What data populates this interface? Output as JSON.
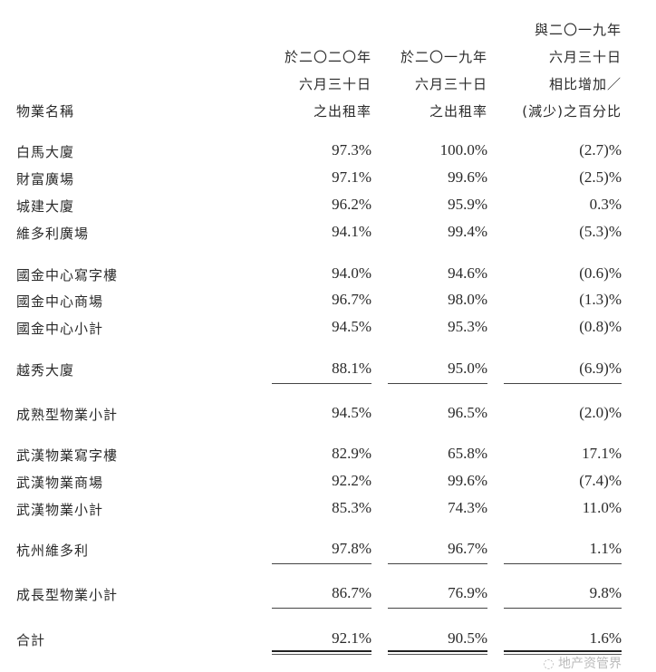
{
  "header": {
    "name_col": "物業名稱",
    "col1": [
      "於二〇二〇年",
      "六月三十日",
      "之出租率"
    ],
    "col2": [
      "於二〇一九年",
      "六月三十日",
      "之出租率"
    ],
    "col3": [
      "與二〇一九年",
      "六月三十日",
      "相比增加／",
      "(減少)之百分比"
    ]
  },
  "rows": [
    {
      "name": "白馬大廈",
      "rate_2020": "97.3%",
      "rate_2019": "100.0%",
      "change": "(2.7)%"
    },
    {
      "name": "財富廣場",
      "rate_2020": "97.1%",
      "rate_2019": "99.6%",
      "change": "(2.5)%"
    },
    {
      "name": "城建大廈",
      "rate_2020": "96.2%",
      "rate_2019": "95.9%",
      "change": "0.3%"
    },
    {
      "name": "維多利廣場",
      "rate_2020": "94.1%",
      "rate_2019": "99.4%",
      "change": "(5.3)%"
    },
    {
      "name": "國金中心寫字樓",
      "rate_2020": "94.0%",
      "rate_2019": "94.6%",
      "change": "(0.6)%"
    },
    {
      "name": "國金中心商場",
      "rate_2020": "96.7%",
      "rate_2019": "98.0%",
      "change": "(1.3)%"
    },
    {
      "name": "國金中心小計",
      "rate_2020": "94.5%",
      "rate_2019": "95.3%",
      "change": "(0.8)%"
    },
    {
      "name": "越秀大廈",
      "rate_2020": "88.1%",
      "rate_2019": "95.0%",
      "change": "(6.9)%"
    },
    {
      "name": "成熟型物業小計",
      "rate_2020": "94.5%",
      "rate_2019": "96.5%",
      "change": "(2.0)%"
    },
    {
      "name": "武漢物業寫字樓",
      "rate_2020": "82.9%",
      "rate_2019": "65.8%",
      "change": "17.1%"
    },
    {
      "name": "武漢物業商場",
      "rate_2020": "92.2%",
      "rate_2019": "99.6%",
      "change": "(7.4)%"
    },
    {
      "name": "武漢物業小計",
      "rate_2020": "85.3%",
      "rate_2019": "74.3%",
      "change": "11.0%"
    },
    {
      "name": "杭州維多利",
      "rate_2020": "97.8%",
      "rate_2019": "96.7%",
      "change": "1.1%"
    },
    {
      "name": "成長型物業小計",
      "rate_2020": "86.7%",
      "rate_2019": "76.9%",
      "change": "9.8%"
    },
    {
      "name": "合計",
      "rate_2020": "92.1%",
      "rate_2019": "90.5%",
      "change": "1.6%"
    }
  ],
  "watermark": "地产资管界"
}
